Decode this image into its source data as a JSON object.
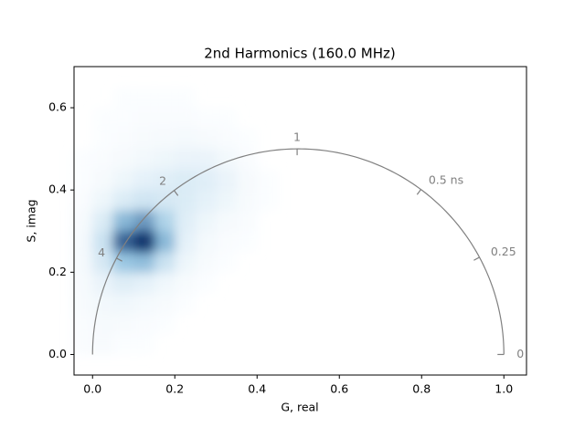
{
  "chart_data": {
    "type": "phasor-hist2d",
    "title": "2nd Harmonics (160.0 MHz)",
    "x_label": "G, real",
    "y_label": "S, imag",
    "frequency": 160,
    "xlim": [
      -0.045,
      1.055
    ],
    "ylim": [
      -0.05,
      0.7
    ],
    "xticks": [
      {
        "value": 0,
        "label": "0.0"
      },
      {
        "value": 0.2,
        "label": "0.2"
      },
      {
        "value": 0.4,
        "label": "0.4"
      },
      {
        "value": 0.6,
        "label": "0.6"
      },
      {
        "value": 0.8,
        "label": "0.8"
      },
      {
        "value": 1,
        "label": "1.0"
      }
    ],
    "yticks": [
      {
        "value": 0,
        "label": "0.0"
      },
      {
        "value": 0.2,
        "label": "0.2"
      },
      {
        "value": 0.4,
        "label": "0.4"
      },
      {
        "value": 0.6,
        "label": "0.6"
      }
    ],
    "grid": false,
    "xbins": [
      -0.05,
      0,
      0.05,
      0.1,
      0.15,
      0.2,
      0.25,
      0.3,
      0.35,
      0.4,
      0.45
    ],
    "ybins": [
      0,
      0.05,
      0.1,
      0.15,
      0.2,
      0.25,
      0.3,
      0.35,
      0.4,
      0.45,
      0.5,
      0.55,
      0.6,
      0.65
    ],
    "counts": [
      [
        2,
        3,
        1,
        1,
        0,
        0,
        0,
        0,
        0,
        0
      ],
      [
        2,
        4,
        3,
        2,
        1,
        0,
        0,
        0,
        0,
        0
      ],
      [
        3,
        6,
        7,
        5,
        3,
        1,
        0,
        0,
        0,
        0
      ],
      [
        4,
        10,
        15,
        12,
        7,
        3,
        1,
        0,
        0,
        0
      ],
      [
        5,
        18,
        35,
        38,
        22,
        8,
        3,
        1,
        0,
        0
      ],
      [
        5,
        22,
        60,
        70,
        40,
        12,
        5,
        2,
        1,
        0
      ],
      [
        4,
        16,
        40,
        48,
        30,
        14,
        8,
        4,
        2,
        0
      ],
      [
        2,
        8,
        16,
        20,
        18,
        16,
        12,
        8,
        3,
        1
      ],
      [
        1,
        4,
        8,
        12,
        14,
        16,
        14,
        10,
        4,
        1
      ],
      [
        1,
        2,
        4,
        6,
        8,
        10,
        10,
        6,
        2,
        0
      ],
      [
        0,
        1,
        2,
        3,
        4,
        5,
        4,
        2,
        1,
        0
      ],
      [
        0,
        1,
        1,
        2,
        2,
        2,
        1,
        1,
        0,
        0
      ],
      [
        0,
        0,
        1,
        1,
        1,
        1,
        0,
        0,
        0,
        0
      ]
    ],
    "colormap": [
      "#f7fbff",
      "#6baed6",
      "#08306b"
    ],
    "circle_color": "#808080",
    "lifetime_ticks": [
      {
        "value": 0,
        "label": "0"
      },
      {
        "value": 0.25,
        "label": "0.25"
      },
      {
        "value": 0.5,
        "label": "0.5 ns"
      },
      {
        "value": 1,
        "label": "1"
      },
      {
        "value": 2,
        "label": "2"
      },
      {
        "value": 4,
        "label": "4"
      }
    ]
  }
}
